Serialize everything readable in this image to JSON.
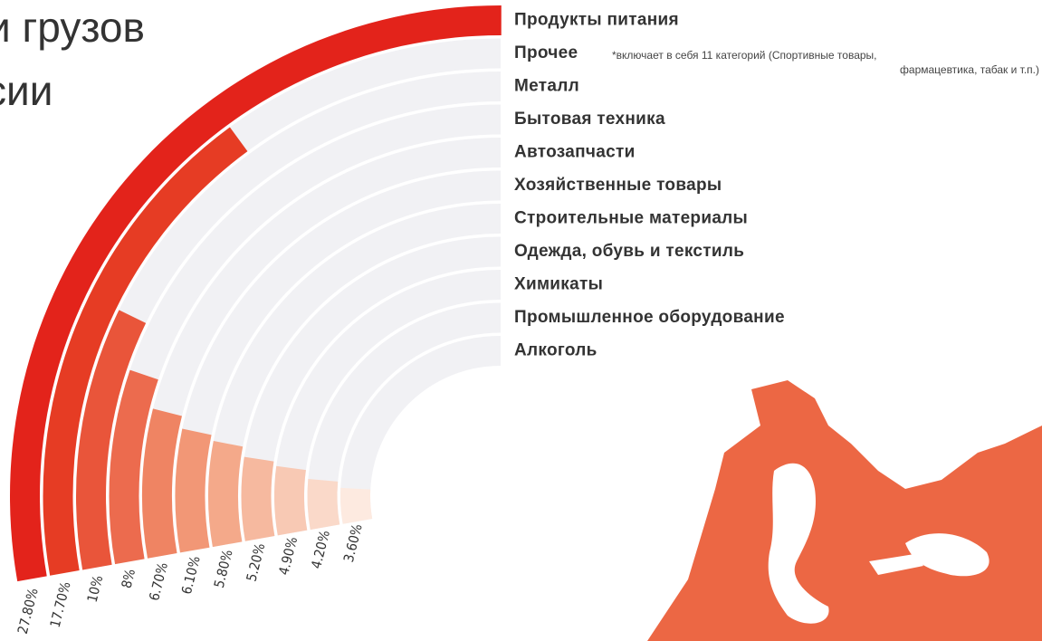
{
  "chart_data": {
    "type": "radial-bar",
    "title": [
      "и грузов",
      "сии"
    ],
    "categories": [
      "Продукты питания",
      "Прочее",
      "Металл",
      "Бытовая техника",
      "Автозапчасти",
      "Хозяйственные товары",
      "Строительные материалы",
      "Одежда, обувь и текстиль",
      "Химикаты",
      "Промышленное оборудование",
      "Алкоголь"
    ],
    "values": [
      27.8,
      17.7,
      10,
      8,
      6.7,
      6.1,
      5.8,
      5.2,
      4.9,
      4.2,
      3.6
    ],
    "value_labels": [
      "27.80%",
      "17.70%",
      "10%",
      "8%",
      "6.70%",
      "6.10%",
      "5.80%",
      "5.20%",
      "4.90%",
      "4.20%",
      "3.60%"
    ],
    "colors": [
      "#e3231b",
      "#e63c24",
      "#e9553a",
      "#ec6b4e",
      "#ef8463",
      "#f29776",
      "#f4a98a",
      "#f6b99f",
      "#f8c9b4",
      "#fad9c9",
      "#fdeae0"
    ],
    "note": [
      "*включает в себя 11 категорий (Спортивные товары,",
      "фармацевтика, табак и т.п.)"
    ]
  }
}
